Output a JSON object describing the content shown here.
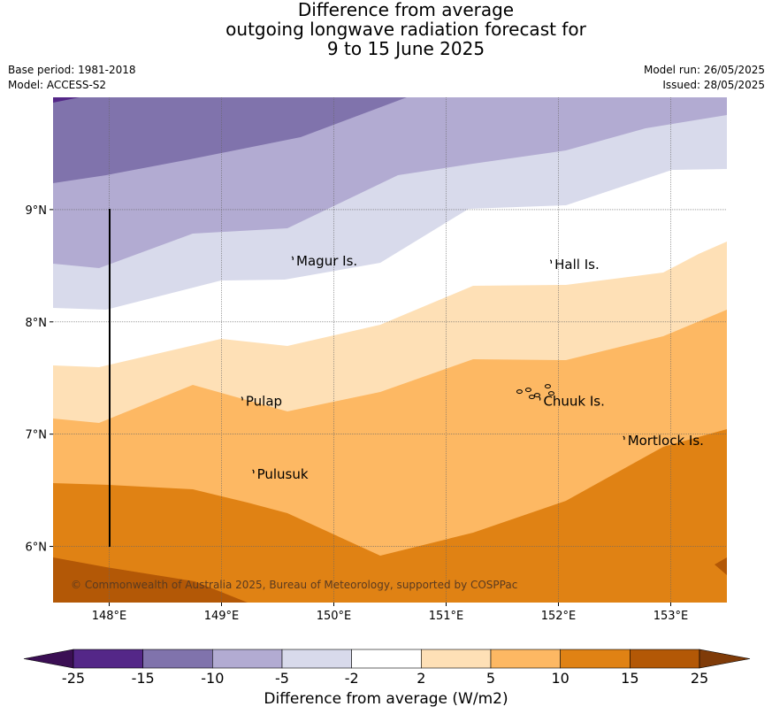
{
  "title": {
    "line1": "Difference from average",
    "line2": "outgoing longwave radiation forecast for",
    "line3": "9 to 15 June 2025"
  },
  "meta": {
    "base_period": "Base period: 1981-2018",
    "model": "Model: ACCESS-S2",
    "model_run": "Model run: 26/05/2025",
    "issued": "Issued: 28/05/2025"
  },
  "map": {
    "lon_range": [
      147.5,
      153.5
    ],
    "lat_range": [
      5.5,
      10.0
    ],
    "lon_ticks": [
      "148°E",
      "149°E",
      "150°E",
      "151°E",
      "152°E",
      "153°E"
    ],
    "lat_ticks": [
      "9°N",
      "8°N",
      "7°N",
      "6°N"
    ],
    "islands": [
      {
        "name": "Magur Is.",
        "lon": 149.65,
        "lat": 8.55
      },
      {
        "name": "Hall Is.",
        "lon": 151.95,
        "lat": 8.52
      },
      {
        "name": "Pulap",
        "lon": 149.2,
        "lat": 7.3
      },
      {
        "name": "Chuuk Is.",
        "lon": 151.85,
        "lat": 7.3
      },
      {
        "name": "Mortlock Is.",
        "lon": 152.6,
        "lat": 6.95
      },
      {
        "name": "Pulusuk",
        "lon": 149.3,
        "lat": 6.65
      }
    ],
    "copyright": "© Commonwealth of Australia 2025, Bureau of Meteorology, supported by COSPPac"
  },
  "colorbar": {
    "label": "Difference from average (W/m2)",
    "ticks": [
      "-25",
      "-15",
      "-10",
      "-5",
      "-2",
      "2",
      "5",
      "10",
      "15",
      "25"
    ],
    "colors": {
      "lt_minus25": "#3b0f54",
      "b1": "#542788",
      "b2": "#8073ac",
      "b3": "#b2abd2",
      "b4": "#d8daeb",
      "b5": "#ffffff",
      "b6": "#fee0b6",
      "b7": "#fdb863",
      "b8": "#e08214",
      "b9": "#b35806",
      "gt_25": "#7f3b08"
    }
  }
}
